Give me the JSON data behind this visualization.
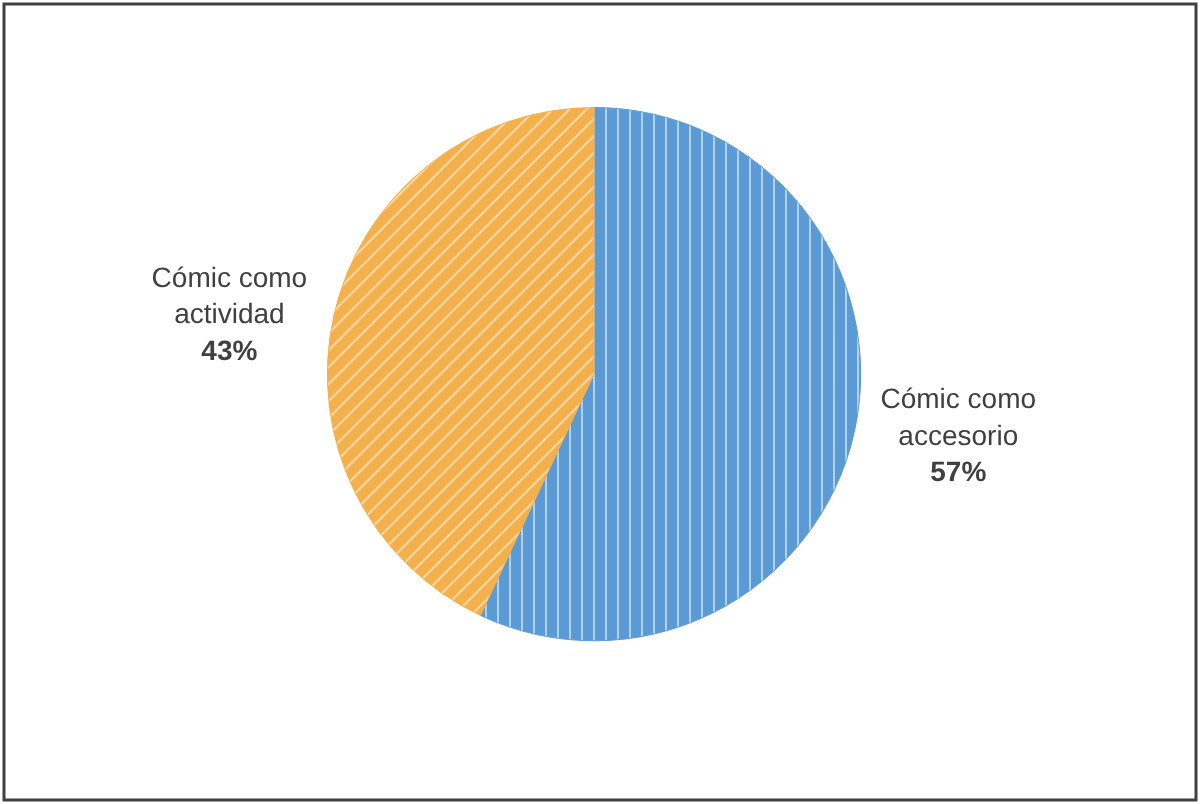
{
  "chart_data": {
    "type": "pie",
    "categories": [
      "Cómic como accesorio",
      "Cómic como actividad"
    ],
    "values": [
      57,
      43
    ],
    "colors": [
      "#5b9bd5",
      "#f4b04a"
    ],
    "value_labels": [
      "57%",
      "43%"
    ]
  }
}
